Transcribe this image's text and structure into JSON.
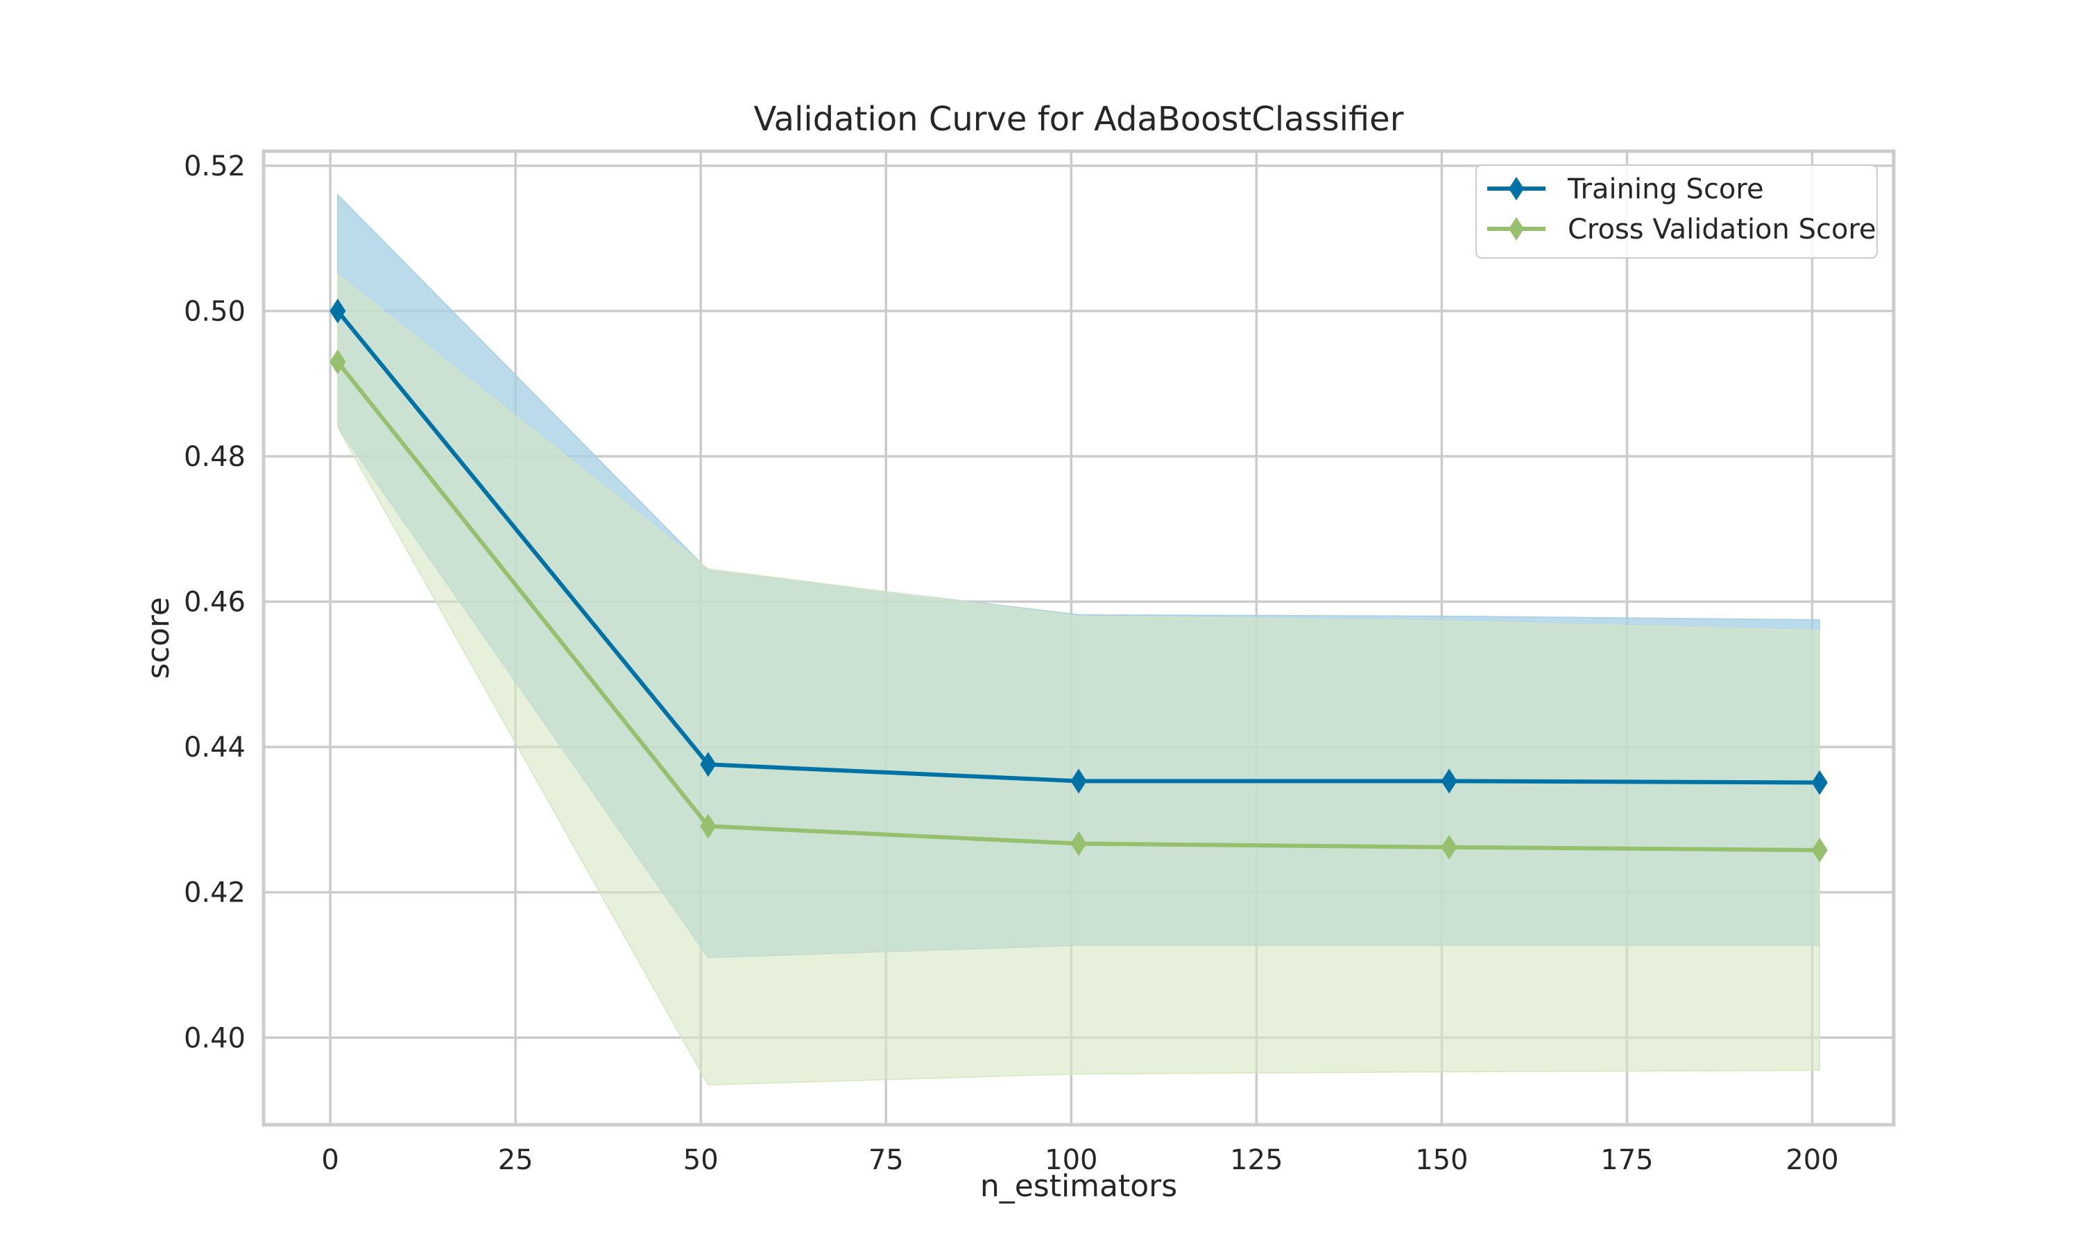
{
  "chart_data": {
    "type": "line",
    "title": "Validation Curve for AdaBoostClassifier",
    "xlabel": "n_estimators",
    "ylabel": "score",
    "xlim": [
      -9,
      211
    ],
    "ylim": [
      0.388,
      0.522
    ],
    "xticks": [
      0,
      25,
      50,
      75,
      100,
      125,
      150,
      175,
      200
    ],
    "xtick_labels": [
      "0",
      "25",
      "50",
      "75",
      "100",
      "125",
      "150",
      "175",
      "200"
    ],
    "yticks": [
      0.4,
      0.42,
      0.44,
      0.46,
      0.48,
      0.5,
      0.52
    ],
    "ytick_labels": [
      "0.40",
      "0.42",
      "0.44",
      "0.46",
      "0.48",
      "0.50",
      "0.52"
    ],
    "grid": true,
    "legend_position": "top-right",
    "x": [
      1,
      51,
      101,
      151,
      201
    ],
    "series": [
      {
        "name": "Training Score",
        "color": "#0072a6",
        "band_color": "#a6cfe3",
        "marker": "diamond",
        "values": [
          0.5,
          0.4376,
          0.4353,
          0.4353,
          0.4351
        ],
        "band_upper": [
          0.516,
          0.4643,
          0.4582,
          0.458,
          0.4575
        ],
        "band_lower": [
          0.484,
          0.411,
          0.4127,
          0.4127,
          0.4127
        ]
      },
      {
        "name": "Cross Validation Score",
        "color": "#96c06e",
        "band_color": "#d5e6c1",
        "marker": "diamond",
        "values": [
          0.493,
          0.4291,
          0.4267,
          0.4262,
          0.4258
        ],
        "band_upper": [
          0.505,
          0.4645,
          0.458,
          0.4573,
          0.456
        ],
        "band_lower": [
          0.484,
          0.3935,
          0.395,
          0.3953,
          0.3955
        ]
      }
    ]
  }
}
